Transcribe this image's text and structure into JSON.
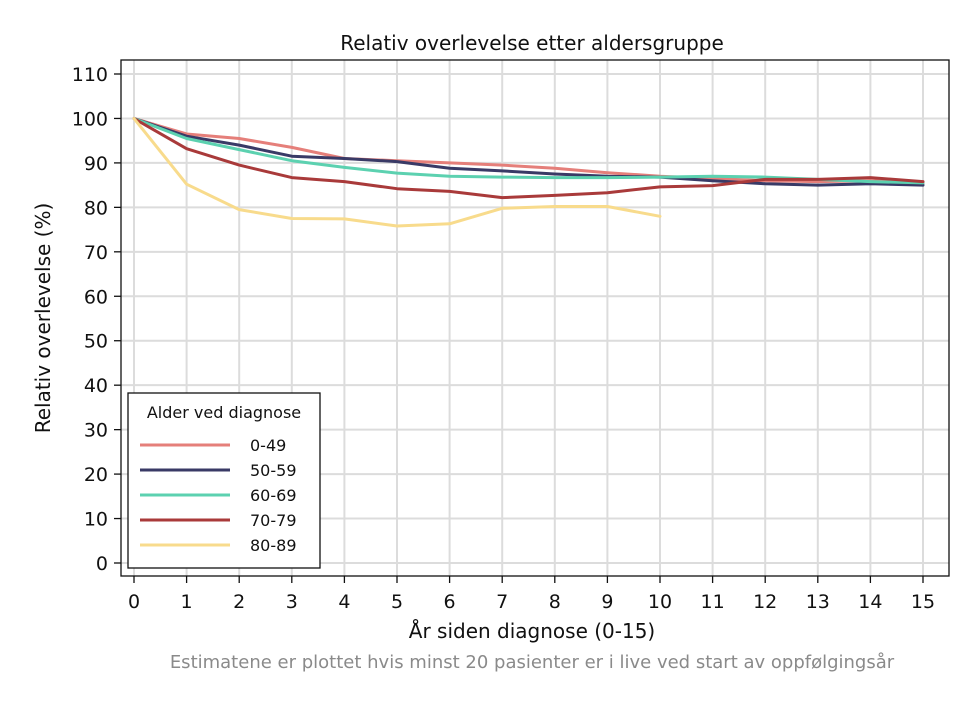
{
  "chart_data": {
    "type": "line",
    "title": "Relativ overlevelse etter aldersgruppe",
    "xlabel": "År siden diagnose (0-15)",
    "ylabel": "Relativ overlevelse (%)",
    "caption": "Estimatene er plottet hvis minst 20 pasienter er i live ved start av oppfølgingsår",
    "xlim": [
      0,
      15
    ],
    "ylim": [
      0,
      110
    ],
    "x_ticks": [
      0,
      1,
      2,
      3,
      4,
      5,
      6,
      7,
      8,
      9,
      10,
      11,
      12,
      13,
      14,
      15
    ],
    "y_ticks": [
      0,
      10,
      20,
      30,
      40,
      50,
      60,
      70,
      80,
      90,
      100,
      110
    ],
    "grid": true,
    "legend": {
      "title": "Alder ved diagnose",
      "placement": "bottom-left"
    },
    "series": [
      {
        "name": "0-49",
        "color": "#e57f7a",
        "x": [
          0,
          1,
          2,
          3,
          4,
          5,
          6,
          7,
          8,
          9,
          10,
          11,
          12,
          13,
          14,
          15
        ],
        "y": [
          100,
          96.5,
          95.5,
          93.5,
          91,
          90.5,
          90,
          89.5,
          88.8,
          87.8,
          87,
          86.5,
          86,
          85.8,
          86,
          85.5
        ]
      },
      {
        "name": "50-59",
        "color": "#393a66",
        "x": [
          0,
          1,
          2,
          3,
          4,
          5,
          6,
          7,
          8,
          9,
          10,
          11,
          12,
          13,
          14,
          15
        ],
        "y": [
          100,
          96,
          94,
          91.5,
          91,
          90.3,
          88.8,
          88.2,
          87.5,
          87,
          86.8,
          86,
          85.3,
          85,
          85.3,
          85
        ]
      },
      {
        "name": "60-69",
        "color": "#5cd1b0",
        "x": [
          0,
          1,
          2,
          3,
          4,
          5,
          6,
          7,
          8,
          9,
          10,
          11,
          12,
          13,
          14,
          15
        ],
        "y": [
          100,
          95.5,
          93,
          90.5,
          89,
          87.7,
          87,
          86.8,
          86.7,
          86.7,
          86.8,
          87,
          86.8,
          86.3,
          85.8,
          85.5
        ]
      },
      {
        "name": "70-79",
        "color": "#a93a3a",
        "x": [
          0,
          1,
          2,
          3,
          4,
          5,
          6,
          7,
          8,
          9,
          10,
          11,
          12,
          13,
          14,
          15
        ],
        "y": [
          100,
          93.2,
          89.5,
          86.7,
          85.8,
          84.2,
          83.6,
          82.2,
          82.7,
          83.3,
          84.6,
          84.9,
          86.3,
          86.3,
          86.7,
          85.8
        ]
      },
      {
        "name": "80-89",
        "color": "#f8db8c",
        "x": [
          0,
          1,
          2,
          3,
          4,
          5,
          6,
          7,
          8,
          9,
          10
        ],
        "y": [
          100,
          85.2,
          79.5,
          77.5,
          77.4,
          75.8,
          76.3,
          79.8,
          80.2,
          80.2,
          78
        ]
      }
    ]
  }
}
